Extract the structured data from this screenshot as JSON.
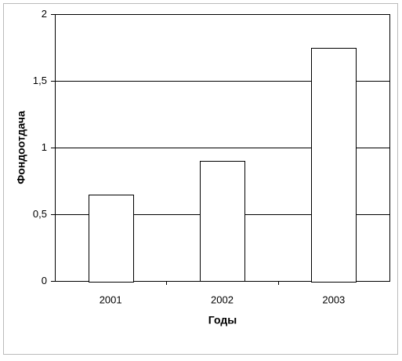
{
  "chart_data": {
    "type": "bar",
    "x_label": "Годы",
    "y_label": "Фондоотдача",
    "categories": [
      "2001",
      "2002",
      "2003"
    ],
    "values": [
      0.65,
      0.9,
      1.75
    ],
    "color": "#ffffff",
    "ylim": [
      0,
      2
    ],
    "yticks": [
      0,
      {
        "value": 0.5,
        "label": "0,5"
      },
      1,
      {
        "value": 1.5,
        "label": "1,5"
      },
      2
    ],
    "grid": true
  }
}
